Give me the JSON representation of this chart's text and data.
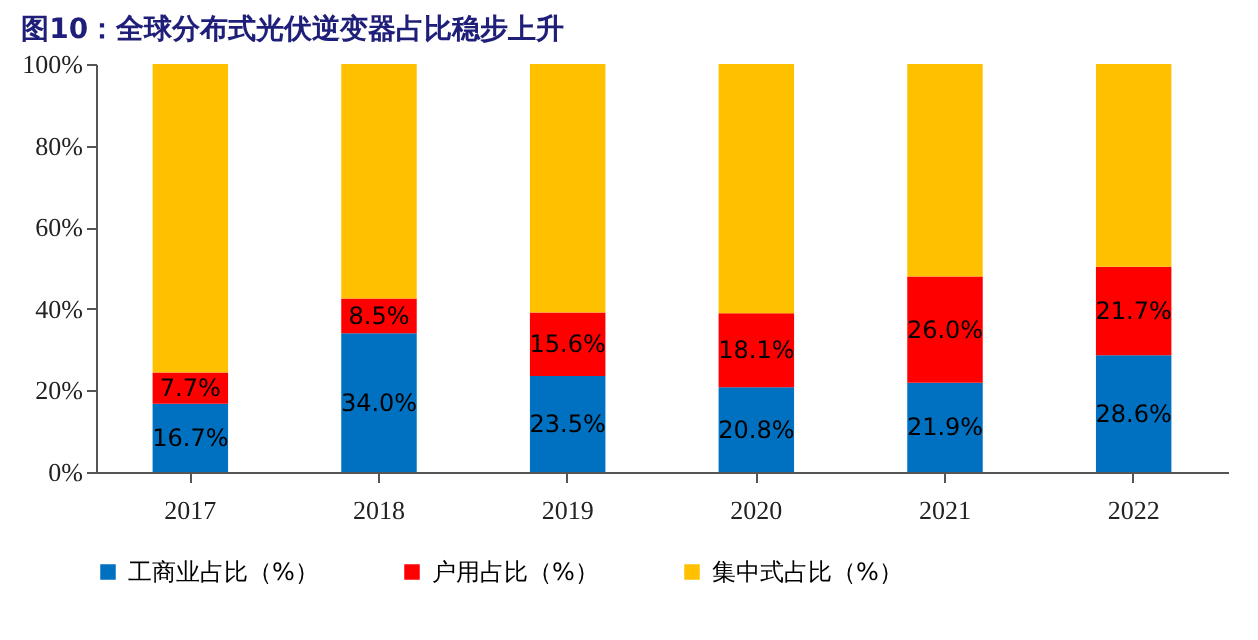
{
  "chart_data": {
    "type": "bar",
    "title": "图10：全球分布式光伏逆变器占比稳步上升",
    "stacked": true,
    "categories": [
      "2017",
      "2018",
      "2019",
      "2020",
      "2021",
      "2022"
    ],
    "series": [
      {
        "name": "工商业占比（%）",
        "color": "#0070c0",
        "values": [
          16.7,
          34.0,
          23.5,
          20.8,
          21.9,
          28.6
        ],
        "value_labels": [
          "16.7%",
          "34.0%",
          "23.5%",
          "20.8%",
          "21.9%",
          "28.6%"
        ]
      },
      {
        "name": "户用占比（%）",
        "color": "#ff0000",
        "values": [
          7.7,
          8.5,
          15.6,
          18.1,
          26.0,
          21.7
        ],
        "value_labels": [
          "7.7%",
          "8.5%",
          "15.6%",
          "18.1%",
          "26.0%",
          "21.7%"
        ]
      },
      {
        "name": "集中式占比（%）",
        "color": "#ffc000",
        "values": [
          75.6,
          57.5,
          60.9,
          61.1,
          52.1,
          49.7
        ]
      }
    ],
    "ylim": [
      0,
      100
    ],
    "yticks": [
      {
        "value": 0,
        "label": "0%"
      },
      {
        "value": 20,
        "label": "20%"
      },
      {
        "value": 40,
        "label": "40%"
      },
      {
        "value": 60,
        "label": "60%"
      },
      {
        "value": 80,
        "label": "80%"
      },
      {
        "value": 100,
        "label": "100%"
      }
    ],
    "grid": false,
    "legend": "bottom"
  }
}
